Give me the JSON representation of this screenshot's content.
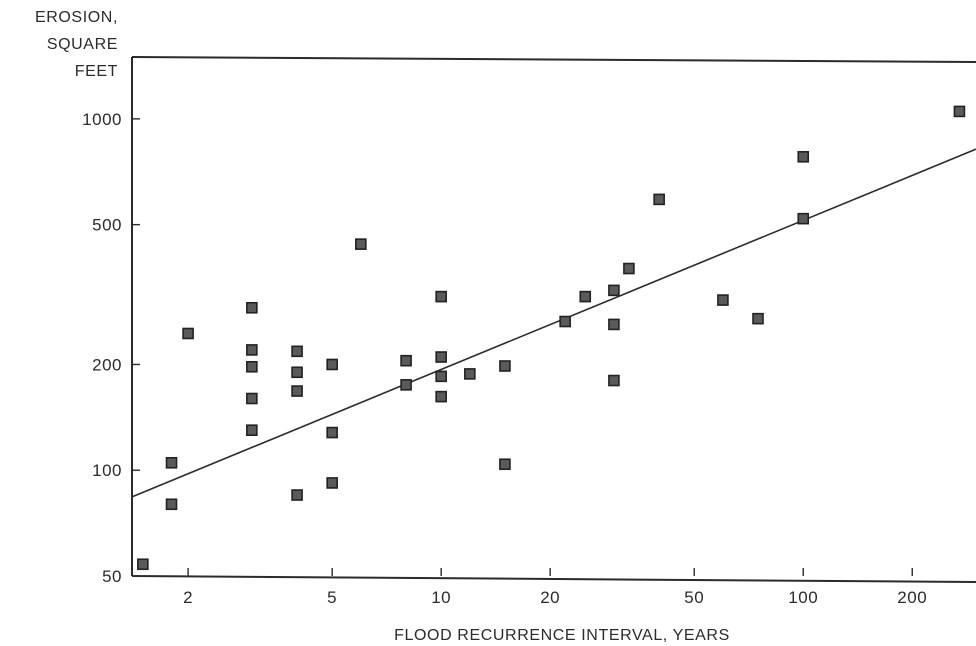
{
  "chart_data": {
    "type": "scatter",
    "title": "",
    "xlabel": "FLOOD RECURRENCE INTERVAL, YEARS",
    "ylabel_lines": [
      "EROSION,",
      "SQUARE",
      "FEET"
    ],
    "xscale": "log",
    "yscale": "log",
    "xlim": [
      1.4,
      300
    ],
    "ylim": [
      50,
      1500
    ],
    "x_ticks": [
      2,
      5,
      10,
      20,
      50,
      100,
      200
    ],
    "x_tick_labels": [
      "2",
      "5",
      "10",
      "20",
      "50",
      "100",
      "200"
    ],
    "y_ticks": [
      50,
      100,
      200,
      500,
      1000
    ],
    "y_tick_labels": [
      "50",
      "100",
      "200",
      "500",
      "1000"
    ],
    "grid": false,
    "legend": "none",
    "marker": "square",
    "points": [
      {
        "x": 1.5,
        "y": 54
      },
      {
        "x": 1.8,
        "y": 80
      },
      {
        "x": 1.8,
        "y": 105
      },
      {
        "x": 2.0,
        "y": 245
      },
      {
        "x": 3.0,
        "y": 290
      },
      {
        "x": 3.0,
        "y": 220
      },
      {
        "x": 3.0,
        "y": 197
      },
      {
        "x": 3.0,
        "y": 160
      },
      {
        "x": 3.0,
        "y": 130
      },
      {
        "x": 4.0,
        "y": 218
      },
      {
        "x": 4.0,
        "y": 190
      },
      {
        "x": 4.0,
        "y": 168
      },
      {
        "x": 4.0,
        "y": 85
      },
      {
        "x": 5.0,
        "y": 200
      },
      {
        "x": 5.0,
        "y": 128
      },
      {
        "x": 5.0,
        "y": 92
      },
      {
        "x": 6.0,
        "y": 440
      },
      {
        "x": 8.0,
        "y": 205
      },
      {
        "x": 8.0,
        "y": 175
      },
      {
        "x": 10.0,
        "y": 312
      },
      {
        "x": 10.0,
        "y": 210
      },
      {
        "x": 10.0,
        "y": 185
      },
      {
        "x": 10.0,
        "y": 162
      },
      {
        "x": 12.0,
        "y": 188
      },
      {
        "x": 15.0,
        "y": 198
      },
      {
        "x": 15.0,
        "y": 104
      },
      {
        "x": 22.0,
        "y": 265
      },
      {
        "x": 25.0,
        "y": 312
      },
      {
        "x": 30.0,
        "y": 325
      },
      {
        "x": 30.0,
        "y": 260
      },
      {
        "x": 30.0,
        "y": 180
      },
      {
        "x": 33.0,
        "y": 375
      },
      {
        "x": 40.0,
        "y": 590
      },
      {
        "x": 60.0,
        "y": 305
      },
      {
        "x": 75.0,
        "y": 270
      },
      {
        "x": 100.0,
        "y": 780
      },
      {
        "x": 100.0,
        "y": 520
      },
      {
        "x": 270.0,
        "y": 1050
      }
    ],
    "trend_line": {
      "x": [
        1.4,
        300
      ],
      "y": [
        84,
        820
      ]
    },
    "colors": {
      "ink": "#2b2b2b",
      "marker_fill": "#5a5a5a"
    }
  }
}
